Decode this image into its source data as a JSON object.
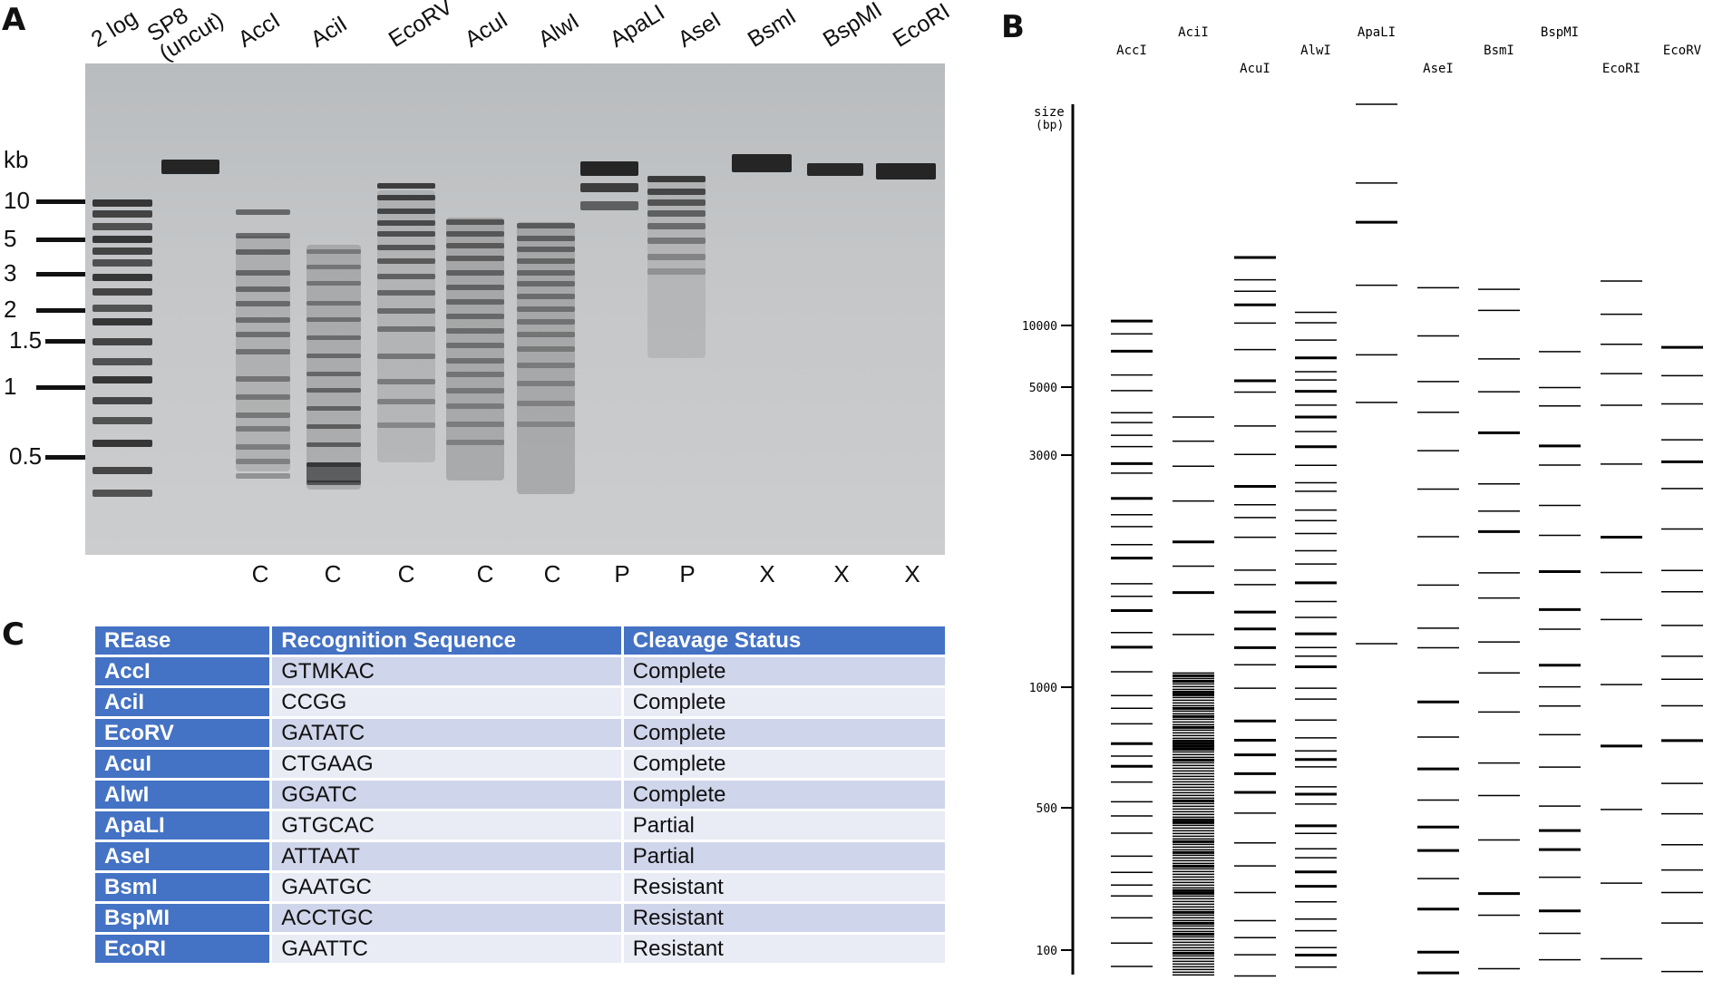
{
  "panels": {
    "a": "A",
    "b": "B",
    "c": "C"
  },
  "gel": {
    "kb_unit": "kb",
    "lanes": [
      {
        "label": "2 log",
        "status": ""
      },
      {
        "label": "SP8\n(uncut)",
        "status": ""
      },
      {
        "label": "AccI",
        "status": "C"
      },
      {
        "label": "AciI",
        "status": "C"
      },
      {
        "label": "EcoRV",
        "status": "C"
      },
      {
        "label": "AcuI",
        "status": "C"
      },
      {
        "label": "AlwI",
        "status": "C"
      },
      {
        "label": "ApaLI",
        "status": "P"
      },
      {
        "label": "AseI",
        "status": "P"
      },
      {
        "label": "BsmI",
        "status": "X"
      },
      {
        "label": "BspMI",
        "status": "X"
      },
      {
        "label": "EcoRI",
        "status": "X"
      }
    ],
    "kb_markers": [
      "10",
      "5",
      "3",
      "2",
      "1.5",
      "1",
      "0.5"
    ]
  },
  "table": {
    "headers": [
      "REase",
      "Recognition Sequence",
      "Cleavage Status"
    ],
    "rows": [
      [
        "AccI",
        "GTMKAC",
        "Complete"
      ],
      [
        "AciI",
        "CCGG",
        "Complete"
      ],
      [
        "EcoRV",
        "GATATC",
        "Complete"
      ],
      [
        "AcuI",
        "CTGAAG",
        "Complete"
      ],
      [
        "AlwI",
        "GGATC",
        "Complete"
      ],
      [
        "ApaLI",
        "GTGCAC",
        "Partial"
      ],
      [
        "AseI",
        "ATTAAT",
        "Partial"
      ],
      [
        "BsmI",
        "GAATGC",
        "Resistant"
      ],
      [
        "BspMI",
        "ACCTGC",
        "Resistant"
      ],
      [
        "EcoRI",
        "GAATTC",
        "Resistant"
      ]
    ]
  },
  "virtual_digest": {
    "axis_label_1": "size",
    "axis_label_2": "(bp)",
    "ticks": [
      "10000",
      "5000",
      "3000",
      "1000",
      "500",
      "100"
    ],
    "lanes": [
      {
        "name": "AccI",
        "density": 0.75,
        "dense_low": false
      },
      {
        "name": "AciI",
        "density": 0.55,
        "dense_low": true
      },
      {
        "name": "AcuI",
        "density": 0.65,
        "dense_low": false
      },
      {
        "name": "AlwI",
        "density": 0.8,
        "dense_low": false
      },
      {
        "name": "ApaLI",
        "density": 0.08,
        "dense_low": false
      },
      {
        "name": "AseI",
        "density": 0.4,
        "dense_low": false
      },
      {
        "name": "BsmI",
        "density": 0.4,
        "dense_low": false
      },
      {
        "name": "BspMI",
        "density": 0.5,
        "dense_low": false
      },
      {
        "name": "EcoRI",
        "density": 0.12,
        "dense_low": false
      },
      {
        "name": "EcoRV",
        "density": 0.45,
        "dense_low": false
      }
    ]
  }
}
